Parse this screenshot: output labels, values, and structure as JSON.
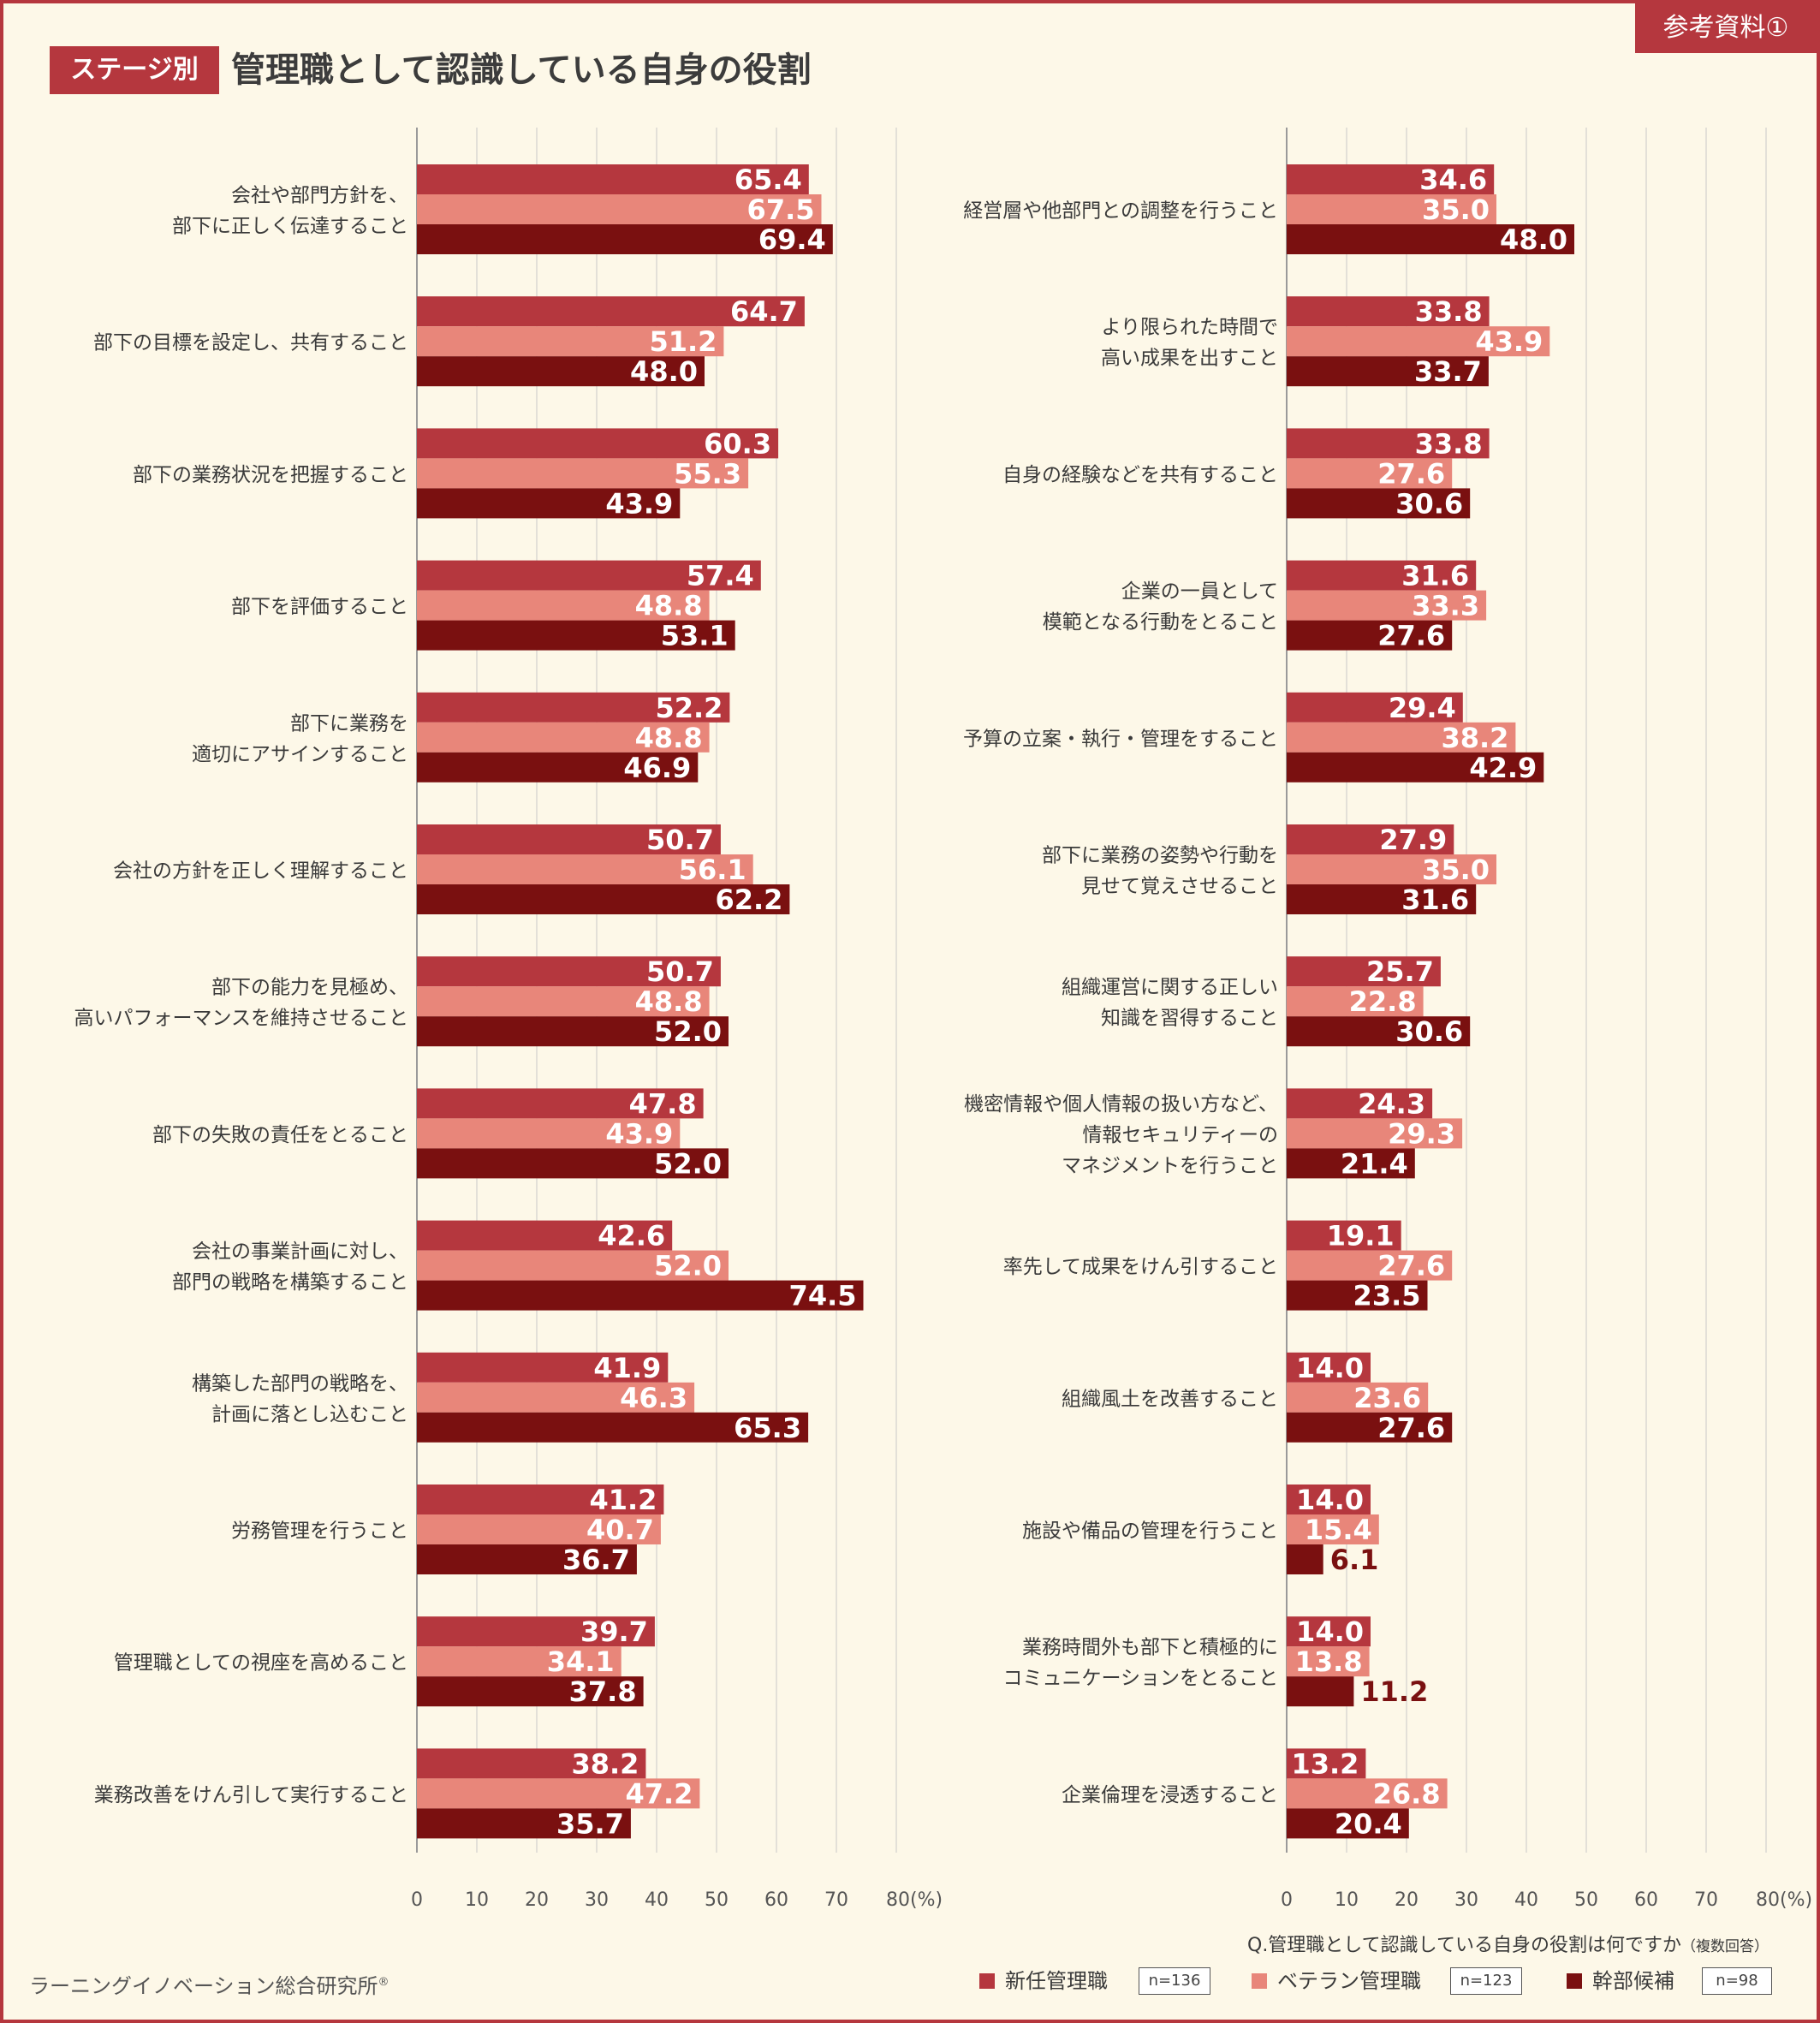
{
  "header": {
    "ref_tag": "参考資料①",
    "stage_tag": "ステージ別",
    "title": "管理職として認識している自身の役割"
  },
  "colors": {
    "new_manager": "#b5373e",
    "veteran_manager": "#e8867a",
    "executive_candidate": "#7a1010",
    "frame": "#b5373e",
    "background": "#fdf8e8"
  },
  "footer": {
    "question": "Q.管理職として認識している自身の役割は何ですか",
    "question_note": "（複数回答）",
    "organization": "ラーニングイノベーション総合研究所",
    "registered": "®"
  },
  "legend": [
    {
      "label": "新任管理職",
      "n": "n=136",
      "color": "#b5373e"
    },
    {
      "label": "ベテラン管理職",
      "n": "n=123",
      "color": "#e8867a"
    },
    {
      "label": "幹部候補",
      "n": "n=98",
      "color": "#7a1010"
    }
  ],
  "chart_data": [
    {
      "type": "bar",
      "orientation": "horizontal",
      "xlim": [
        0,
        80
      ],
      "x_ticks": [
        "0",
        "10",
        "20",
        "30",
        "40",
        "50",
        "60",
        "70",
        "80(%)"
      ],
      "grid": true,
      "categories": [
        "会社や部門方針を、\n部下に正しく伝達すること",
        "部下の目標を設定し、共有すること",
        "部下の業務状況を把握すること",
        "部下を評価すること",
        "部下に業務を\n適切にアサインすること",
        "会社の方針を正しく理解すること",
        "部下の能力を見極め、\n高いパフォーマンスを維持させること",
        "部下の失敗の責任をとること",
        "会社の事業計画に対し、\n部門の戦略を構築すること",
        "構築した部門の戦略を、\n計画に落とし込むこと",
        "労務管理を行うこと",
        "管理職としての視座を高めること",
        "業務改善をけん引して実行すること"
      ],
      "series": [
        {
          "name": "新任管理職",
          "values": [
            65.4,
            64.7,
            60.3,
            57.4,
            52.2,
            50.7,
            50.7,
            47.8,
            42.6,
            41.9,
            41.2,
            39.7,
            38.2
          ]
        },
        {
          "name": "ベテラン管理職",
          "values": [
            67.5,
            51.2,
            55.3,
            48.8,
            48.8,
            56.1,
            48.8,
            43.9,
            52.0,
            46.3,
            40.7,
            34.1,
            47.2
          ]
        },
        {
          "name": "幹部候補",
          "values": [
            69.4,
            48.0,
            43.9,
            53.1,
            46.9,
            62.2,
            52.0,
            52.0,
            74.5,
            65.3,
            36.7,
            37.8,
            35.7
          ]
        }
      ]
    },
    {
      "type": "bar",
      "orientation": "horizontal",
      "xlim": [
        0,
        80
      ],
      "x_ticks": [
        "0",
        "10",
        "20",
        "30",
        "40",
        "50",
        "60",
        "70",
        "80(%)"
      ],
      "grid": true,
      "categories": [
        "経営層や他部門との調整を行うこと",
        "より限られた時間で\n高い成果を出すこと",
        "自身の経験などを共有すること",
        "企業の一員として\n模範となる行動をとること",
        "予算の立案・執行・管理をすること",
        "部下に業務の姿勢や行動を\n見せて覚えさせること",
        "組織運営に関する正しい\n知識を習得すること",
        "機密情報や個人情報の扱い方など、\n情報セキュリティーの\nマネジメントを行うこと",
        "率先して成果をけん引すること",
        "組織風土を改善すること",
        "施設や備品の管理を行うこと",
        "業務時間外も部下と積極的に\nコミュニケーションをとること",
        "企業倫理を浸透すること"
      ],
      "series": [
        {
          "name": "新任管理職",
          "values": [
            34.6,
            33.8,
            33.8,
            31.6,
            29.4,
            27.9,
            25.7,
            24.3,
            19.1,
            14.0,
            14.0,
            14.0,
            13.2
          ]
        },
        {
          "name": "ベテラン管理職",
          "values": [
            35.0,
            43.9,
            27.6,
            33.3,
            38.2,
            35.0,
            22.8,
            29.3,
            27.6,
            23.6,
            15.4,
            13.8,
            26.8
          ]
        },
        {
          "name": "幹部候補",
          "values": [
            48.0,
            33.7,
            30.6,
            27.6,
            42.9,
            31.6,
            30.6,
            21.4,
            23.5,
            27.6,
            6.1,
            11.2,
            20.4
          ]
        }
      ]
    }
  ]
}
